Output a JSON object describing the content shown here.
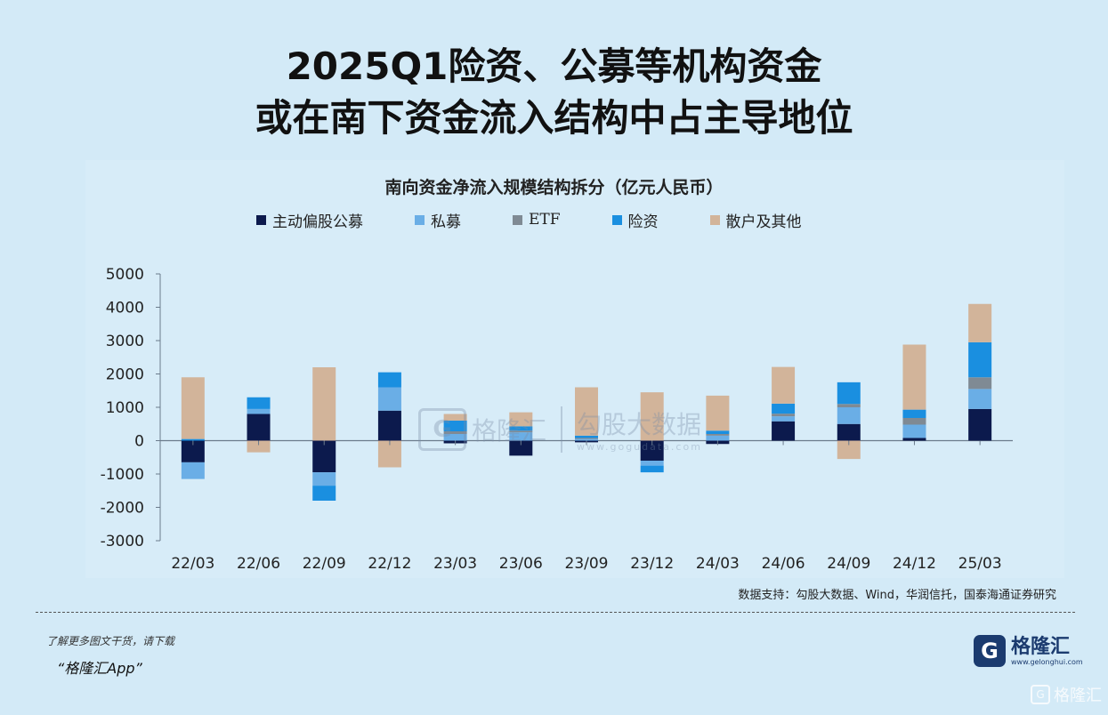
{
  "headline": {
    "line1": "2025Q1险资、公募等机构资金",
    "line2": "或在南下资金流入结构中占主导地位"
  },
  "source": "数据支持：勾股大数据、Wind，华润信托，国泰海通证券研究",
  "promo": {
    "line1": "了解更多图文干货，请下载",
    "line2": "“格隆汇App”"
  },
  "logo": {
    "mark": "G",
    "name": "格隆汇",
    "url": "www.gelonghui.com"
  },
  "watermark": {
    "mark": "G",
    "name": "格隆汇",
    "name2": "勾股大数据",
    "url": "www.gogudata.com"
  },
  "corner_watermark": {
    "mark": "G",
    "name": "格隆汇"
  },
  "colors": {
    "主动偏股公募": "#0c1a4d",
    "私募": "#6aaee6",
    "ETF": "#7f8a94",
    "险资": "#1a8fe0",
    "散户及其他": "#d2b49a"
  },
  "chart_data": {
    "type": "bar",
    "stacked": true,
    "title": "南向资金净流入规模结构拆分（亿元人民币）",
    "categories": [
      "22/03",
      "22/06",
      "22/09",
      "22/12",
      "23/03",
      "23/06",
      "23/09",
      "23/12",
      "24/03",
      "24/06",
      "24/09",
      "24/12",
      "25/03"
    ],
    "ylim": [
      -3000,
      5000
    ],
    "yticks": [
      5000,
      4000,
      3000,
      2000,
      1000,
      0,
      -1000,
      -2000,
      -3000
    ],
    "legend_position": "top",
    "series": [
      {
        "name": "主动偏股公募",
        "values": [
          -650,
          800,
          -950,
          900,
          -80,
          -450,
          -50,
          -600,
          -100,
          580,
          500,
          80,
          950
        ]
      },
      {
        "name": "私募",
        "values": [
          -500,
          150,
          -400,
          700,
          200,
          250,
          50,
          -150,
          150,
          150,
          500,
          400,
          600
        ]
      },
      {
        "name": "ETF",
        "values": [
          0,
          0,
          0,
          0,
          80,
          50,
          30,
          0,
          50,
          80,
          100,
          200,
          350
        ]
      },
      {
        "name": "险资",
        "values": [
          50,
          350,
          -450,
          450,
          320,
          130,
          70,
          -200,
          100,
          300,
          650,
          250,
          1050
        ]
      },
      {
        "name": "散户及其他",
        "values": [
          1850,
          -350,
          2200,
          -800,
          200,
          420,
          1450,
          1450,
          1050,
          1100,
          -550,
          1950,
          1150
        ]
      }
    ]
  }
}
